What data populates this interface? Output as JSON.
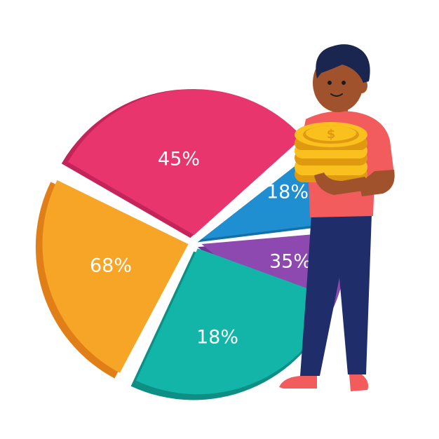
{
  "chart_data": {
    "type": "pie",
    "title": "",
    "slices": [
      {
        "label": "45%",
        "value": 45,
        "color": "#e8356e",
        "shade": "#c4245a"
      },
      {
        "label": "18%",
        "value": 18,
        "color": "#1f8fd1",
        "shade": "#1570a8"
      },
      {
        "label": "35%",
        "value": 35,
        "color": "#8e49b0",
        "shade": "#6f3590"
      },
      {
        "label": "18%",
        "value": 18,
        "color": "#13b5a8",
        "shade": "#0d8f85"
      },
      {
        "label": "68%",
        "value": 68,
        "color": "#f7a526",
        "shade": "#e07f18"
      }
    ],
    "legend": false,
    "grid": false
  },
  "illustration": {
    "subject": "person holding a stack of gold coins",
    "coin_symbol": "$",
    "colors": {
      "skin": "#a0522d",
      "hair": "#1a2550",
      "shirt": "#f25c5c",
      "pants": "#1f2d6b",
      "shoes": "#f25c5c",
      "coin": "#f9c01e",
      "coin_shade": "#e09a12"
    }
  }
}
